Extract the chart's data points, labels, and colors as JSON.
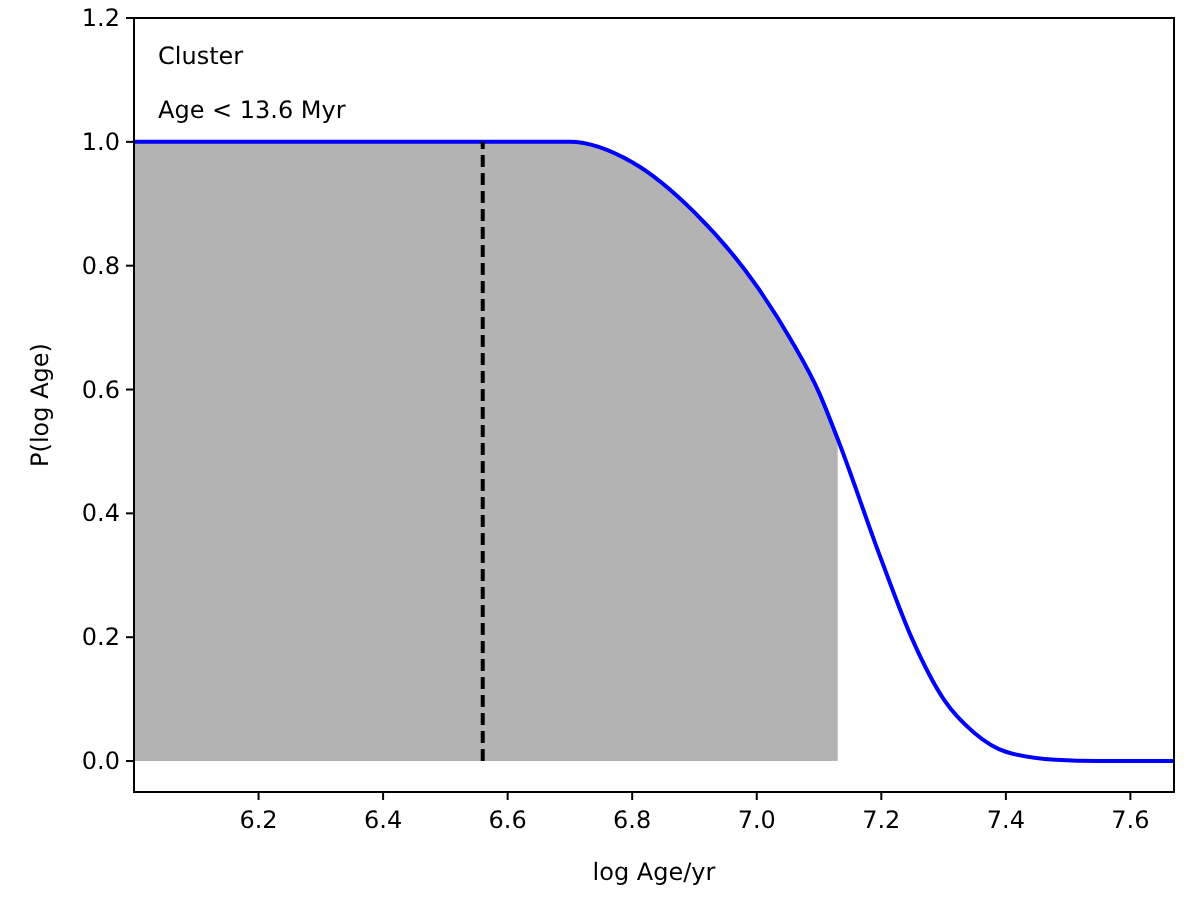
{
  "chart_data": {
    "type": "line",
    "xlabel": "log Age/yr",
    "ylabel": "P(log Age)",
    "annotations": [
      "Cluster",
      "Age < 13.6 Myr"
    ],
    "xlim": [
      6.0,
      7.67
    ],
    "ylim": [
      -0.05,
      1.2
    ],
    "xticks": [
      6.2,
      6.4,
      6.6,
      6.8,
      {
        "value": 7,
        "label": "7.0"
      },
      7.2,
      7.4,
      7.6
    ],
    "yticks": [
      {
        "value": 0,
        "label": "0.0"
      },
      0.2,
      0.4,
      0.6,
      0.8,
      {
        "value": 1,
        "label": "1.0"
      },
      1.2
    ],
    "grid": false,
    "series": [
      {
        "type": "area",
        "color": "#b3b3b3",
        "x": [
          6.0,
          6.7,
          6.8,
          6.9,
          7.0,
          7.055,
          7.1,
          7.13
        ],
        "values": [
          1.0,
          1.0,
          0.967,
          0.886,
          0.767,
          0.68,
          0.595,
          0.52
        ]
      },
      {
        "color": "#0000ff",
        "x": [
          6.0,
          6.7,
          6.8,
          6.9,
          7.0,
          7.055,
          7.1,
          7.13,
          7.2,
          7.25,
          7.3,
          7.35,
          7.4,
          7.48,
          7.55,
          7.67
        ],
        "values": [
          1.0,
          1.0,
          0.967,
          0.886,
          0.767,
          0.68,
          0.595,
          0.52,
          0.325,
          0.196,
          0.1,
          0.045,
          0.015,
          0.002,
          0.0,
          0.0
        ]
      },
      {
        "color": "#000000",
        "line_style": "dashed",
        "x": [
          6.56,
          6.56
        ],
        "values": [
          0.0,
          1.0
        ]
      }
    ]
  }
}
